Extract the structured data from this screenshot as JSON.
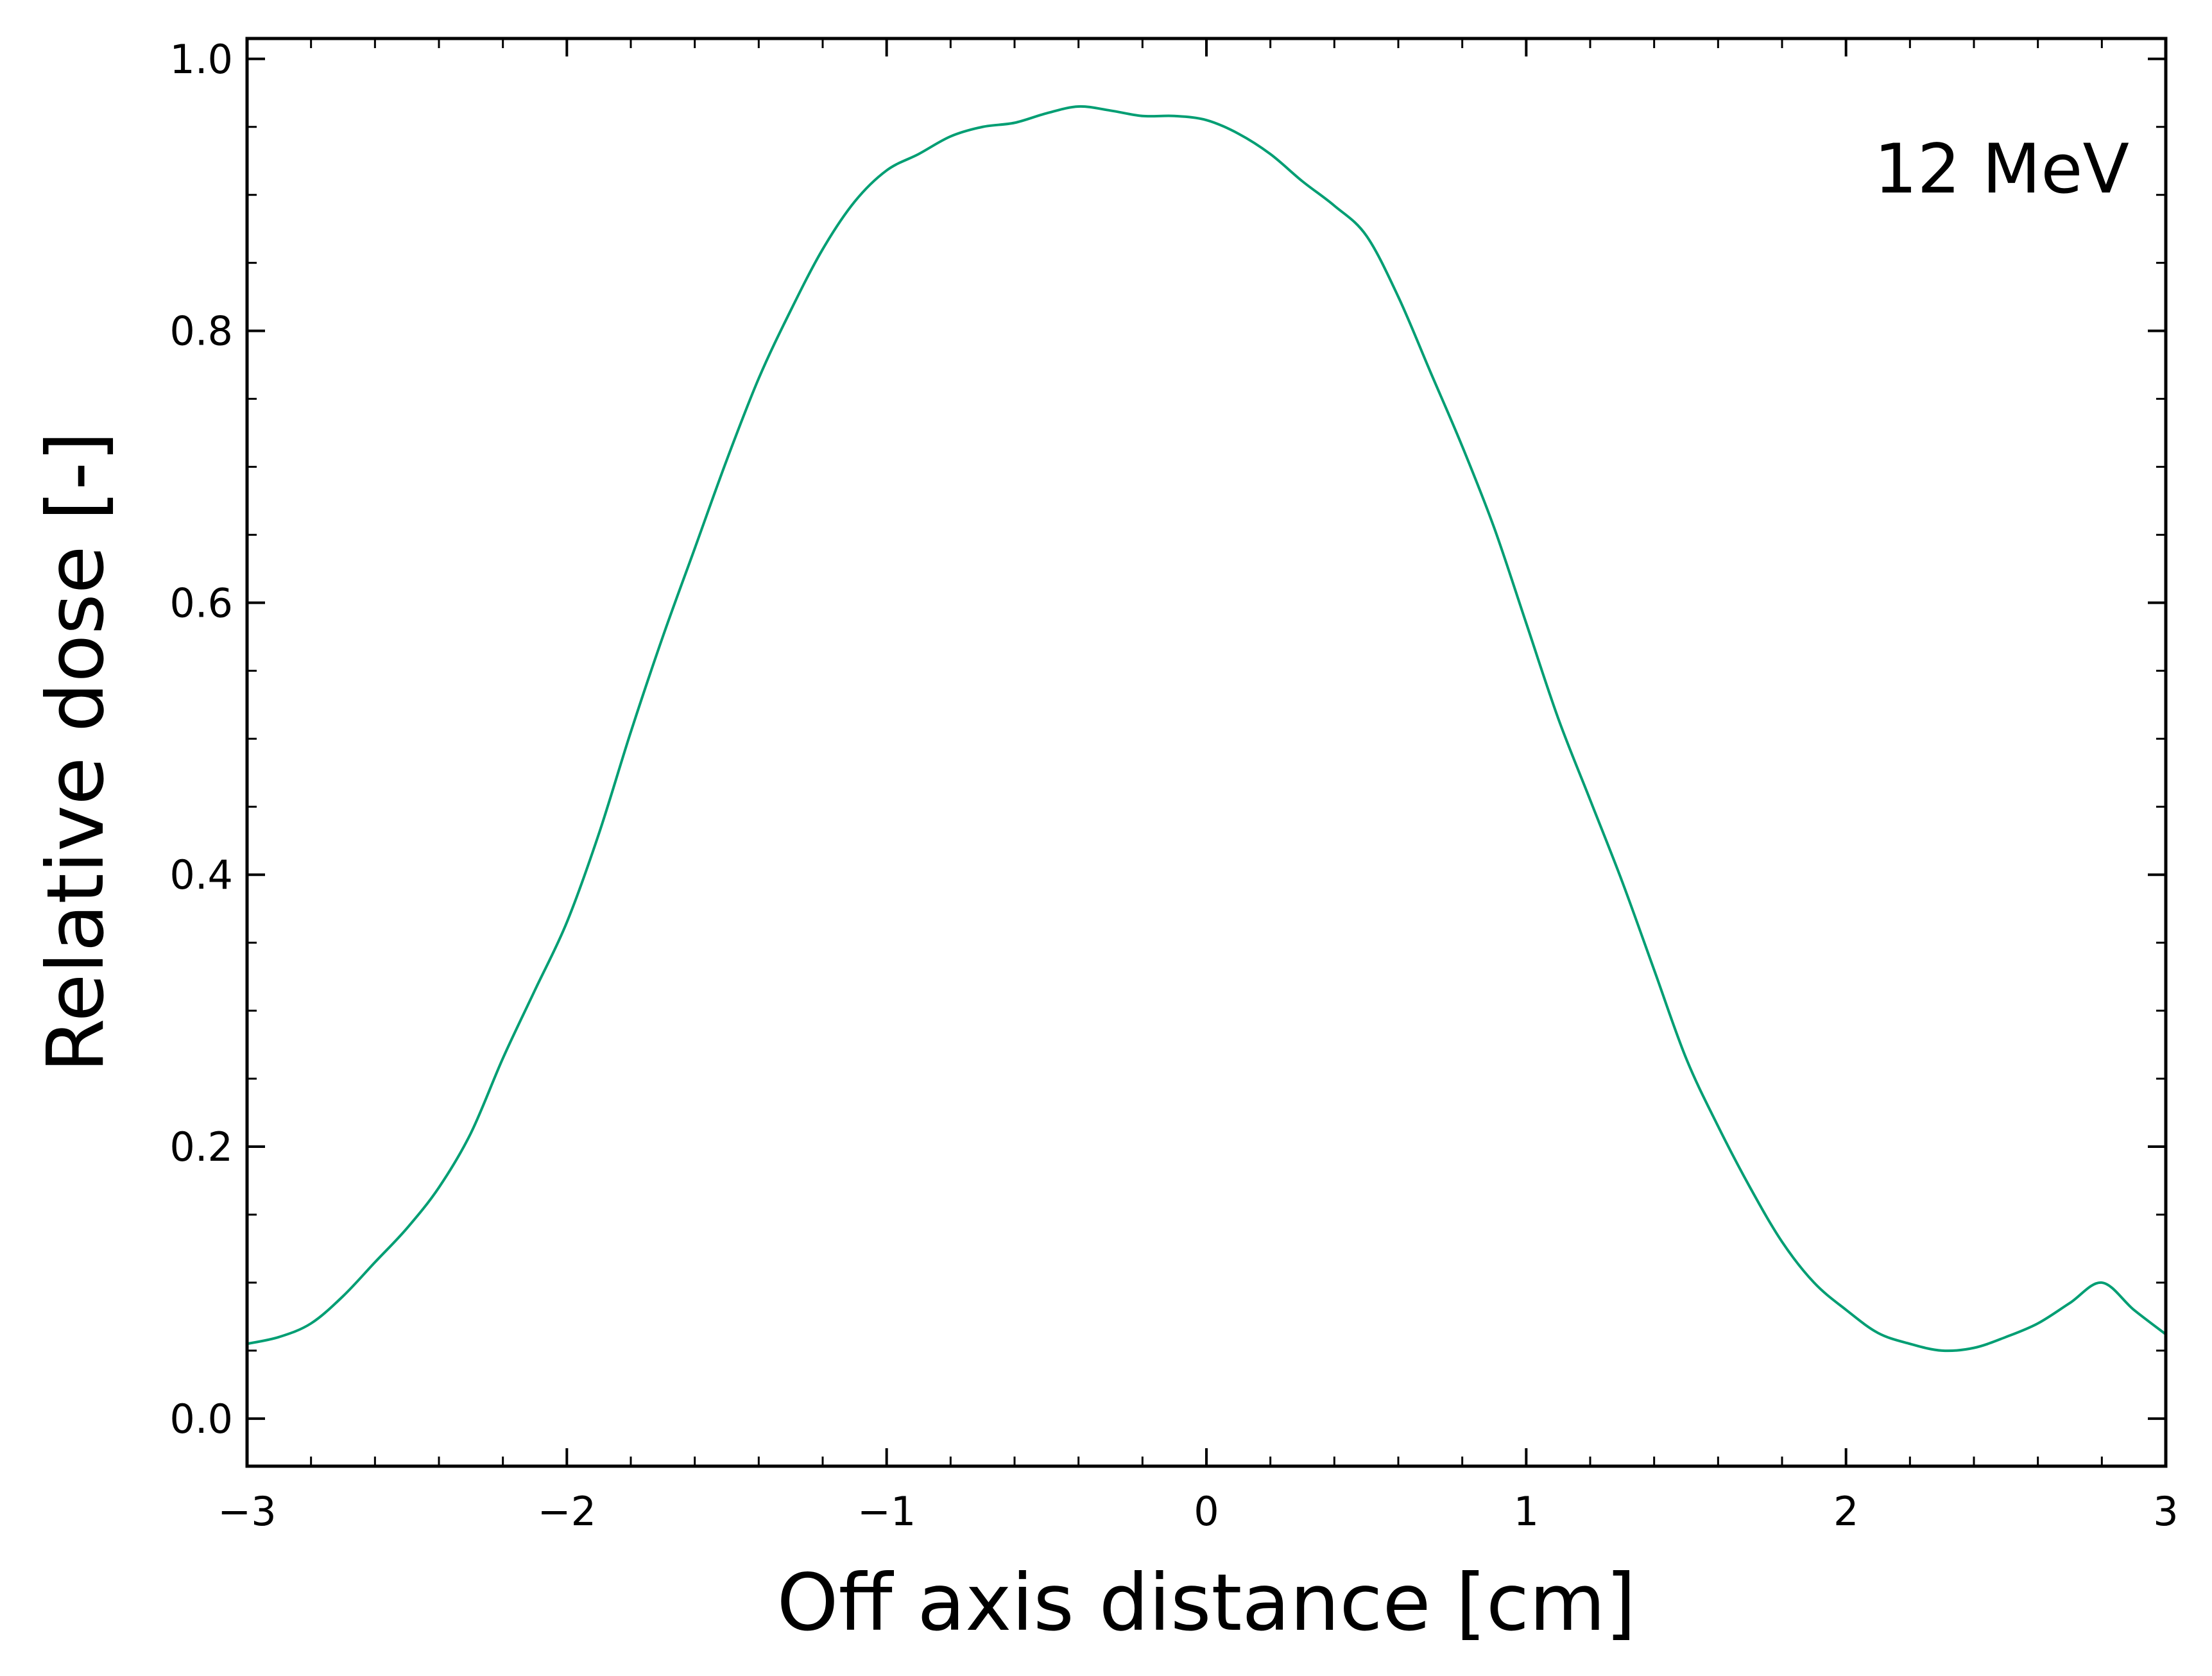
{
  "chart_data": {
    "type": "line",
    "xlabel": "Off axis distance [cm]",
    "ylabel": "Relative dose [-]",
    "annotation": "12 MeV",
    "xlim": [
      -3,
      3
    ],
    "ylim": [
      -0.035,
      1.015
    ],
    "x_ticks": [
      -3,
      -2,
      -1,
      0,
      1,
      2,
      3
    ],
    "x_tick_labels": [
      "−3",
      "−2",
      "−1",
      "0",
      "1",
      "2",
      "3"
    ],
    "x_minor_step": 0.2,
    "y_ticks": [
      0.0,
      0.2,
      0.4,
      0.6,
      0.8,
      1.0
    ],
    "y_tick_labels": [
      "0.0",
      "0.2",
      "0.4",
      "0.6",
      "0.8",
      "1.0"
    ],
    "y_minor_step": 0.05,
    "grid": false,
    "colors": {
      "line": "#009e73",
      "axes": "#000000"
    },
    "series": [
      {
        "x": [
          -3.0,
          -2.9,
          -2.8,
          -2.7,
          -2.6,
          -2.5,
          -2.4,
          -2.3,
          -2.2,
          -2.1,
          -2.0,
          -1.9,
          -1.8,
          -1.7,
          -1.6,
          -1.5,
          -1.4,
          -1.3,
          -1.2,
          -1.1,
          -1.0,
          -0.9,
          -0.8,
          -0.7,
          -0.6,
          -0.5,
          -0.4,
          -0.3,
          -0.2,
          -0.1,
          0.0,
          0.1,
          0.2,
          0.3,
          0.4,
          0.5,
          0.6,
          0.7,
          0.8,
          0.9,
          1.0,
          1.1,
          1.2,
          1.3,
          1.4,
          1.5,
          1.6,
          1.7,
          1.8,
          1.9,
          2.0,
          2.1,
          2.2,
          2.3,
          2.4,
          2.5,
          2.6,
          2.7,
          2.8,
          2.9,
          3.0
        ],
        "values": [
          0.055,
          0.06,
          0.07,
          0.09,
          0.115,
          0.14,
          0.17,
          0.21,
          0.265,
          0.315,
          0.365,
          0.43,
          0.505,
          0.575,
          0.64,
          0.705,
          0.765,
          0.815,
          0.86,
          0.895,
          0.918,
          0.93,
          0.943,
          0.95,
          0.953,
          0.96,
          0.965,
          0.962,
          0.958,
          0.958,
          0.955,
          0.945,
          0.93,
          0.91,
          0.892,
          0.87,
          0.825,
          0.77,
          0.715,
          0.655,
          0.585,
          0.515,
          0.455,
          0.395,
          0.33,
          0.265,
          0.215,
          0.17,
          0.13,
          0.1,
          0.08,
          0.063,
          0.055,
          0.05,
          0.052,
          0.06,
          0.07,
          0.085,
          0.1,
          0.08,
          0.062
        ]
      }
    ]
  }
}
